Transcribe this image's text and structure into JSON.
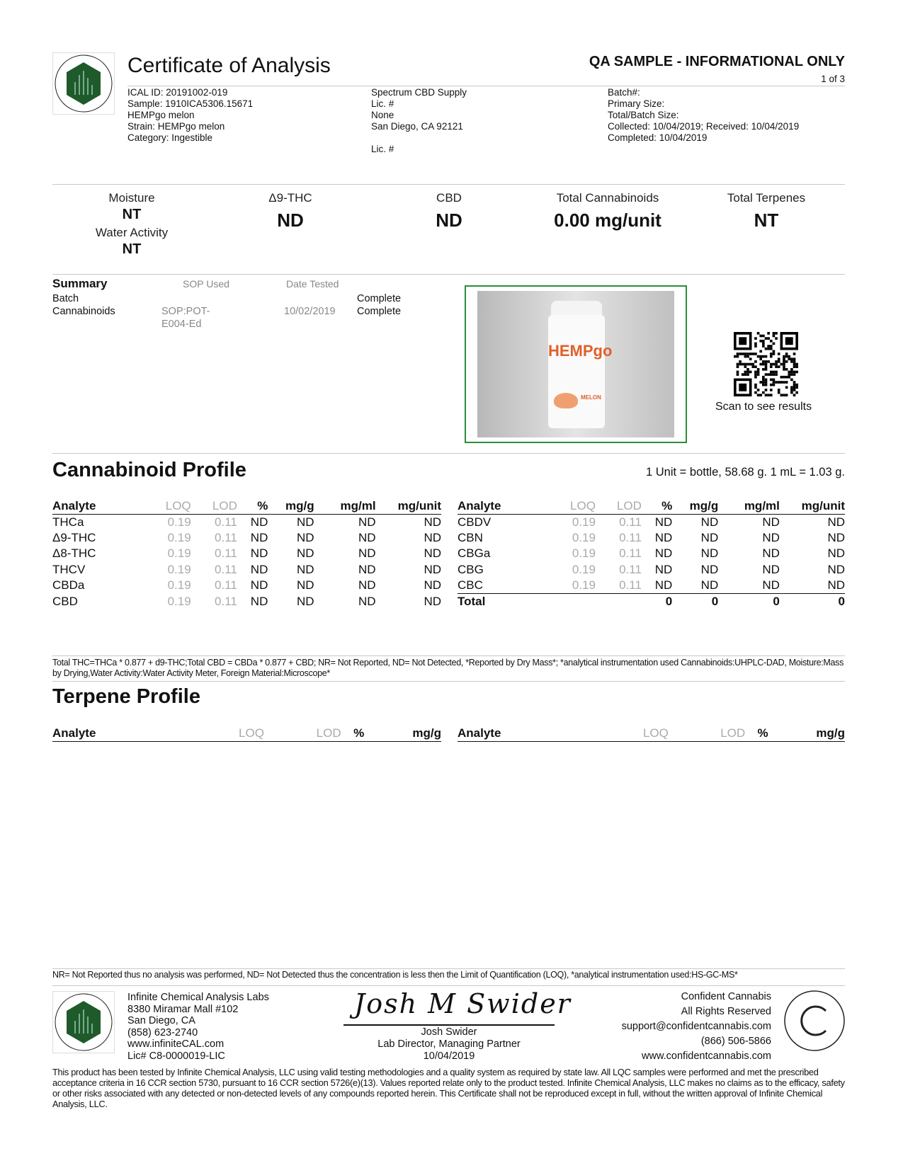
{
  "header": {
    "title": "Certificate of Analysis",
    "qa_label": "QA SAMPLE - INFORMATIONAL ONLY",
    "page": "1 of 3",
    "sample_info": [
      "ICAL ID: 20191002-019",
      "Sample: 1910ICA5306.15671",
      "HEMPgo melon",
      "Strain: HEMPgo melon",
      "Category: Ingestible"
    ],
    "client_info": [
      "Spectrum CBD Supply",
      "Lic. #",
      "None",
      "San Diego, CA 92121",
      "",
      "Lic. #"
    ],
    "batch_info": [
      "Batch#:",
      "Primary Size:",
      "Total/Batch Size:",
      "Collected: 10/04/2019; Received: 10/04/2019",
      "Completed: 10/04/2019"
    ]
  },
  "metrics": {
    "moisture_label": "Moisture",
    "moisture": "NT",
    "water_activity_label": "Water Activity",
    "water_activity": "NT",
    "thc_label": "Δ9-THC",
    "thc": "ND",
    "cbd_label": "CBD",
    "cbd": "ND",
    "total_cann_label": "Total Cannabinoids",
    "total_cann": "0.00 mg/unit",
    "total_terp_label": "Total Terpenes",
    "total_terp": "NT"
  },
  "summary": {
    "title": "Summary",
    "sop_header": "SOP Used",
    "date_header": "Date Tested",
    "rows": [
      {
        "name": "Batch",
        "sop": "",
        "date": "",
        "status": "Complete"
      },
      {
        "name": "Cannabinoids",
        "sop": "SOP:POT-E004-Ed",
        "date": "10/02/2019",
        "status": "Complete"
      }
    ]
  },
  "product_image": {
    "brand": "HEMPgo",
    "flavor": "MELON"
  },
  "qr": {
    "caption": "Scan to see results"
  },
  "cannabinoid": {
    "title": "Cannabinoid Profile",
    "unit_note": "1 Unit = bottle, 58.68 g. 1 mL = 1.03 g.",
    "headers": [
      "Analyte",
      "LOQ",
      "LOD",
      "%",
      "mg/g",
      "mg/ml",
      "mg/unit"
    ],
    "left": [
      [
        "THCa",
        "0.19",
        "0.11",
        "ND",
        "ND",
        "ND",
        "ND"
      ],
      [
        "Δ9-THC",
        "0.19",
        "0.11",
        "ND",
        "ND",
        "ND",
        "ND"
      ],
      [
        "Δ8-THC",
        "0.19",
        "0.11",
        "ND",
        "ND",
        "ND",
        "ND"
      ],
      [
        "THCV",
        "0.19",
        "0.11",
        "ND",
        "ND",
        "ND",
        "ND"
      ],
      [
        "CBDa",
        "0.19",
        "0.11",
        "ND",
        "ND",
        "ND",
        "ND"
      ],
      [
        "CBD",
        "0.19",
        "0.11",
        "ND",
        "ND",
        "ND",
        "ND"
      ]
    ],
    "right": [
      [
        "CBDV",
        "0.19",
        "0.11",
        "ND",
        "ND",
        "ND",
        "ND"
      ],
      [
        "CBN",
        "0.19",
        "0.11",
        "ND",
        "ND",
        "ND",
        "ND"
      ],
      [
        "CBGa",
        "0.19",
        "0.11",
        "ND",
        "ND",
        "ND",
        "ND"
      ],
      [
        "CBG",
        "0.19",
        "0.11",
        "ND",
        "ND",
        "ND",
        "ND"
      ],
      [
        "CBC",
        "0.19",
        "0.11",
        "ND",
        "ND",
        "ND",
        "ND"
      ]
    ],
    "total": [
      "Total",
      "",
      "",
      "0",
      "0",
      "0",
      "0"
    ],
    "footnote": "Total THC=THCa * 0.877 + d9-THC;Total CBD = CBDa * 0.877 + CBD; NR= Not Reported, ND= Not Detected, *Reported by Dry Mass*;  *analytical instrumentation used Cannabinoids:UHPLC-DAD, Moisture:Mass by Drying,Water Activity:Water Activity Meter, Foreign Material:Microscope*"
  },
  "terpene": {
    "title": "Terpene Profile",
    "headers": [
      "Analyte",
      "LOQ",
      "LOD",
      "%",
      "mg/g"
    ],
    "footnote": "NR= Not Reported thus no analysis was performed, ND= Not Detected thus the concentration is less then the Limit of Quantification (LOQ), *analytical instrumentation used:HS-GC-MS*"
  },
  "footer": {
    "lab": [
      "Infinite Chemical Analysis Labs",
      "8380 Miramar Mall #102",
      "San Diego, CA",
      "(858) 623-2740",
      "www.infiniteCAL.com",
      "Lic# C8-0000019-LIC"
    ],
    "signature": "Josh M Swider",
    "signer": [
      "Josh Swider",
      "Lab Director, Managing Partner",
      "10/04/2019"
    ],
    "cc": [
      "Confident Cannabis",
      "All Rights Reserved",
      "support@confidentcannabis.com",
      "(866) 506-5866",
      "www.confidentcannabis.com"
    ],
    "cc_logo_text": "CONFIDENT CANNABIS",
    "logo_text": "INFINITE CHEMICAL ANALYSIS LABS",
    "disclaimer": "This product has been tested by Infinite Chemical Analysis, LLC using valid testing methodologies and a quality system as required by state law. All LQC samples were performed and met the prescribed acceptance criteria in 16 CCR section 5730, pursuant to 16 CCR section 5726(e)(13). Values reported relate only to the product tested. Infinite Chemical Analysis, LLC makes no claims as to the efficacy, safety or other risks associated with any detected or non-detected levels of any compounds reported herein. This Certificate shall not be reproduced except in full, without the written approval of Infinite Chemical Analysis, LLC."
  },
  "colors": {
    "logo_green": "#1f5a2a",
    "image_border": "#2e8b3a"
  }
}
